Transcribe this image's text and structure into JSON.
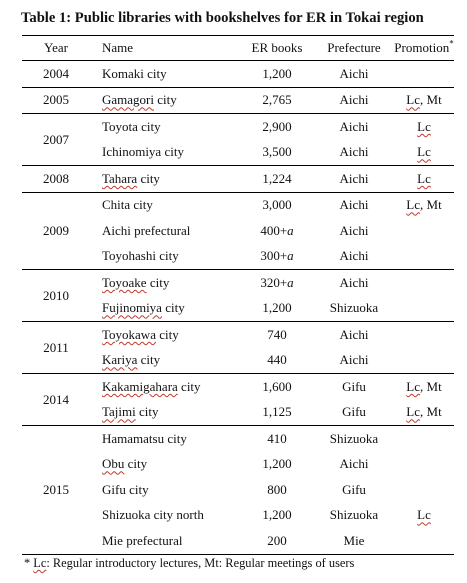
{
  "caption": "Table 1: Public libraries with bookshelves for ER in Tokai region",
  "headers": {
    "year": "Year",
    "name": "Name",
    "books": "ER books",
    "prefecture": "Prefecture",
    "promotion": "Promotion",
    "promotion_mark": "*"
  },
  "groups": [
    {
      "year": "2004",
      "rows": [
        {
          "name": "Komaki city",
          "books": "1,200",
          "prefecture": "Aichi",
          "promotion": ""
        }
      ]
    },
    {
      "year": "2005",
      "rows": [
        {
          "name": "Gamagori city",
          "books": "2,765",
          "prefecture": "Aichi",
          "promotion": "Lc, Mt"
        }
      ]
    },
    {
      "year": "2007",
      "rows": [
        {
          "name": "Toyota city",
          "books": "2,900",
          "prefecture": "Aichi",
          "promotion": "Lc"
        },
        {
          "name": "Ichinomiya city",
          "books": "3,500",
          "prefecture": "Aichi",
          "promotion": "Lc"
        }
      ]
    },
    {
      "year": "2008",
      "rows": [
        {
          "name": "Tahara city",
          "books": "1,224",
          "prefecture": "Aichi",
          "promotion": "Lc"
        }
      ]
    },
    {
      "year": "2009",
      "rows": [
        {
          "name": "Chita city",
          "books": "3,000",
          "prefecture": "Aichi",
          "promotion": "Lc, Mt"
        },
        {
          "name": "Aichi prefectural",
          "books": "400+a",
          "prefecture": "Aichi",
          "promotion": ""
        },
        {
          "name": "Toyohashi city",
          "books": "300+a",
          "prefecture": "Aichi",
          "promotion": ""
        }
      ]
    },
    {
      "year": "2010",
      "rows": [
        {
          "name": "Toyoake city",
          "books": "320+a",
          "prefecture": "Aichi",
          "promotion": ""
        },
        {
          "name": "Fujinomiya city",
          "books": "1,200",
          "prefecture": "Shizuoka",
          "promotion": ""
        }
      ]
    },
    {
      "year": "2011",
      "rows": [
        {
          "name": "Toyokawa city",
          "books": "740",
          "prefecture": "Aichi",
          "promotion": ""
        },
        {
          "name": "Kariya city",
          "books": "440",
          "prefecture": "Aichi",
          "promotion": ""
        }
      ]
    },
    {
      "year": "2014",
      "rows": [
        {
          "name": "Kakamigahara city",
          "books": "1,600",
          "prefecture": "Gifu",
          "promotion": "Lc, Mt"
        },
        {
          "name": "Tajimi city",
          "books": "1,125",
          "prefecture": "Gifu",
          "promotion": "Lc, Mt"
        }
      ]
    },
    {
      "year": "2015",
      "rows": [
        {
          "name": "Hamamatsu city",
          "books": "410",
          "prefecture": "Shizuoka",
          "promotion": ""
        },
        {
          "name": "Obu city",
          "books": "1,200",
          "prefecture": "Aichi",
          "promotion": ""
        },
        {
          "name": "Gifu city",
          "books": "800",
          "prefecture": "Gifu",
          "promotion": ""
        },
        {
          "name": "Shizuoka city north",
          "books": "1,200",
          "prefecture": "Shizuoka",
          "promotion": "Lc"
        },
        {
          "name": "Mie prefectural",
          "books": "200",
          "prefecture": "Mie",
          "promotion": ""
        }
      ]
    }
  ],
  "footnote": "* Lc: Regular introductory lectures, Mt: Regular meetings of users"
}
